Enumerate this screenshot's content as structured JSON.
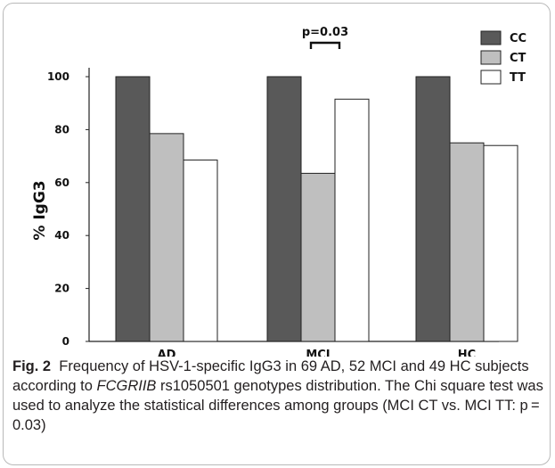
{
  "chart_data": {
    "type": "bar",
    "categories": [
      "AD",
      "MCI",
      "HC"
    ],
    "series": [
      {
        "name": "CC",
        "values": [
          100,
          100,
          100
        ],
        "color": "#595959"
      },
      {
        "name": "CT",
        "values": [
          78.5,
          63.5,
          75.0
        ],
        "color": "#bfbfbf"
      },
      {
        "name": "TT",
        "values": [
          68.5,
          91.5,
          74.0
        ],
        "color": "#ffffff"
      }
    ],
    "ylabel": "% IgG3",
    "xlabel": "",
    "ylim": [
      0,
      100
    ],
    "yticks": [
      0,
      20,
      40,
      60,
      80,
      100
    ],
    "legend_position": "top-right",
    "grid": false,
    "annotation": {
      "text": "p=0.03",
      "category": "MCI",
      "between": [
        "CT",
        "TT"
      ]
    }
  },
  "caption": {
    "label": "Fig. 2",
    "text_before": "Frequency of HSV-1-specific IgG3 in 69 AD, 52 MCI and 49 HC subjects according to ",
    "gene": "FCGRIIB",
    "text_after": " rs1050501 genotypes distribution. The Chi square test was used to analyze the statistical differences among groups (MCI CT vs. MCI TT: p = 0.03)"
  }
}
